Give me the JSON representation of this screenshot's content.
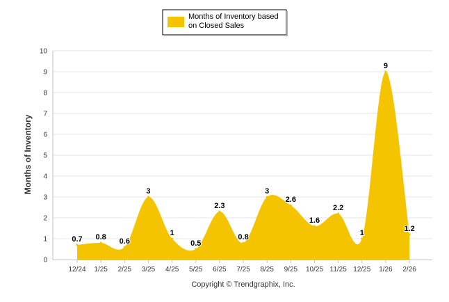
{
  "colors": {
    "series": "#f5c400",
    "grid": "#e6e6e6",
    "axis": "#c0c0c0"
  },
  "legend": {
    "line1": "Months of Inventory based",
    "line2": "on Closed Sales"
  },
  "copyright": "Copyright © Trendgraphix, Inc.",
  "chart_data": {
    "type": "area",
    "title": "",
    "xlabel": "",
    "ylabel": "Months of Inventory",
    "ylim": [
      0,
      10
    ],
    "yticks": [
      "0",
      "1",
      "2",
      "3",
      "4",
      "5",
      "6",
      "7",
      "8",
      "9",
      "10"
    ],
    "grid": true,
    "legend_position": "top-center",
    "categories": [
      "12/24",
      "1/25",
      "2/25",
      "3/25",
      "4/25",
      "5/25",
      "6/25",
      "7/25",
      "8/25",
      "9/25",
      "10/25",
      "11/25",
      "12/25",
      "1/26",
      "2/26"
    ],
    "series": [
      {
        "name": "Months of Inventory based on Closed Sales",
        "values": [
          0.7,
          0.8,
          0.6,
          3,
          1,
          0.5,
          2.3,
          0.8,
          3,
          2.6,
          1.6,
          2.2,
          1,
          9,
          1.2
        ],
        "labels": [
          "0.7",
          "0.8",
          "0.6",
          "3",
          "1",
          "0.5",
          "2.3",
          "0.8",
          "3",
          "2.6",
          "1.6",
          "2.2",
          "1",
          "9",
          "1.2"
        ]
      }
    ]
  }
}
